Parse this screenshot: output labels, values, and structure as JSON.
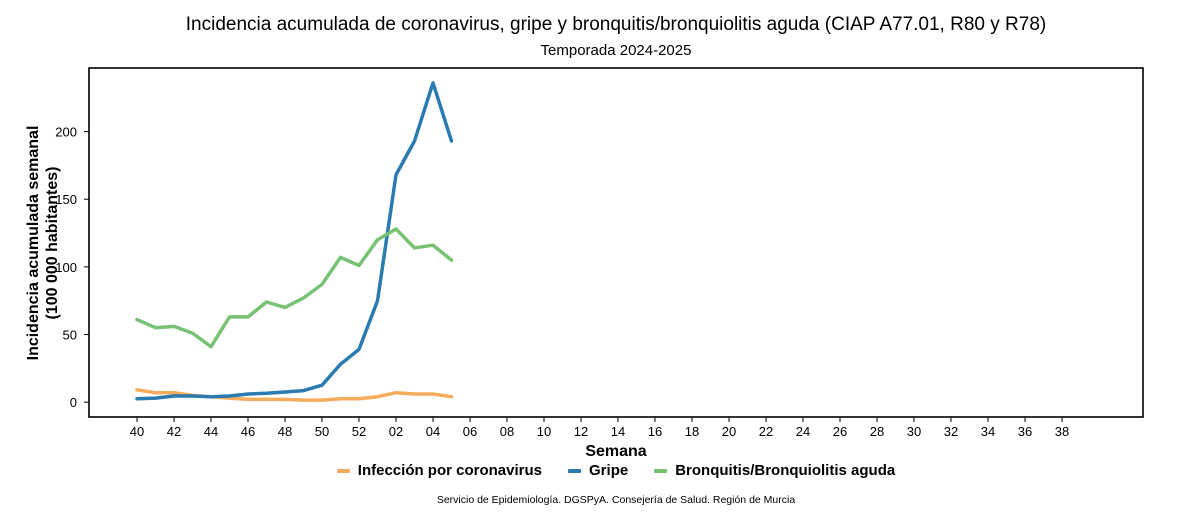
{
  "chart_data": {
    "type": "line",
    "title": "Incidencia acumulada de coronavirus, gripe y bronquitis/bronquiolitis aguda (CIAP A77.01, R80 y R78)",
    "subtitle": "Temporada 2024-2025",
    "xlabel": "Semana",
    "ylabel": "Incidencia acumulada semanal",
    "ylabel2": "(100 000 habitantes)",
    "x_ticks": [
      "40",
      "42",
      "44",
      "46",
      "48",
      "50",
      "52",
      "02",
      "04",
      "06",
      "08",
      "10",
      "12",
      "14",
      "16",
      "18",
      "20",
      "22",
      "24",
      "26",
      "28",
      "30",
      "32",
      "34",
      "36",
      "38"
    ],
    "y_ticks": [
      0,
      50,
      100,
      150,
      200
    ],
    "ylim": [
      -11,
      247
    ],
    "weeks": [
      "40",
      "41",
      "42",
      "43",
      "44",
      "45",
      "46",
      "47",
      "48",
      "49",
      "50",
      "51",
      "52",
      "01",
      "02",
      "03",
      "04",
      "05"
    ],
    "series": [
      {
        "name": "Infección por coronavirus",
        "color": "#F5AC5D",
        "values": [
          9,
          7,
          7,
          5,
          4,
          3,
          2,
          2,
          2,
          1.5,
          1.5,
          2.5,
          2.5,
          4,
          7,
          6,
          6,
          4
        ]
      },
      {
        "name": "Gripe",
        "color": "#2B7BB0",
        "values": [
          2.5,
          3,
          4.5,
          4.5,
          4,
          4.5,
          6,
          6.5,
          7.5,
          8.5,
          12.5,
          28,
          39,
          75,
          168,
          193,
          236,
          193
        ]
      },
      {
        "name": "Bronquitis/Bronquiolitis aguda",
        "color": "#77C373",
        "values": [
          61,
          55,
          56,
          51,
          41,
          63,
          63,
          74,
          70,
          77,
          87,
          107,
          101,
          120,
          128,
          114,
          116,
          105
        ]
      }
    ],
    "grid": false,
    "legend_position": "bottom"
  },
  "footer": {
    "source": "Servicio de Epidemiología. DGSPyA. Consejería de Salud. Región de Murcia"
  }
}
